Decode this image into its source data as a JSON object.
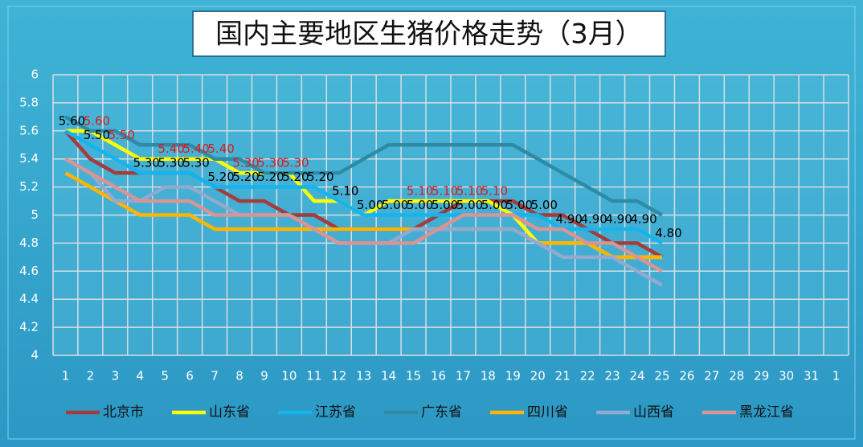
{
  "chart_data": {
    "type": "line",
    "title": "国内主要地区生猪价格走势（3月）",
    "categories": [
      1,
      2,
      3,
      4,
      5,
      6,
      7,
      8,
      9,
      10,
      11,
      12,
      13,
      14,
      15,
      16,
      17,
      18,
      19,
      20,
      21,
      22,
      23,
      24,
      25,
      26,
      27,
      28,
      29,
      30,
      31,
      1
    ],
    "ylim": [
      4,
      6
    ],
    "yticks": [
      4,
      4.2,
      4.4,
      4.6,
      4.8,
      5,
      5.2,
      5.4,
      5.6,
      5.8,
      6
    ],
    "grid": true,
    "legend": "bottom",
    "series": [
      {
        "name": "北京市",
        "color": "#a33c3a",
        "values": [
          5.6,
          5.4,
          5.3,
          5.3,
          5.3,
          5.3,
          5.2,
          5.1,
          5.1,
          5.0,
          5.0,
          4.9,
          4.9,
          4.9,
          4.9,
          5.0,
          5.1,
          5.1,
          5.1,
          5.0,
          5.0,
          4.9,
          4.8,
          4.8,
          4.7,
          null,
          null,
          null,
          null,
          null,
          null,
          null
        ]
      },
      {
        "name": "山东省",
        "color": "#ffff00",
        "label_color": "#e01818",
        "values": [
          5.6,
          5.6,
          5.5,
          5.4,
          5.4,
          5.4,
          5.4,
          5.3,
          5.3,
          5.3,
          5.1,
          5.1,
          5.0,
          5.1,
          5.1,
          5.1,
          5.1,
          5.1,
          5.0,
          4.8,
          4.8,
          4.8,
          4.7,
          4.7,
          4.7,
          null,
          null,
          null,
          null,
          null,
          null,
          null
        ],
        "value_labels": [
          null,
          "5.60",
          "5.50",
          null,
          "5.40",
          "5.40",
          "5.40",
          "5.30",
          "5.30",
          "5.30",
          null,
          "5.10",
          null,
          null,
          "5.10",
          "5.10",
          "5.10",
          "5.10",
          null,
          null,
          null,
          null,
          null,
          null,
          null,
          null,
          null,
          null,
          null,
          null,
          null,
          null
        ]
      },
      {
        "name": "江苏省",
        "color": "#14b4ee",
        "label_color": "#000000",
        "values": [
          5.6,
          5.5,
          5.4,
          5.3,
          5.3,
          5.3,
          5.2,
          5.2,
          5.2,
          5.2,
          5.2,
          5.1,
          5.0,
          5.0,
          5.0,
          5.0,
          5.0,
          5.0,
          5.0,
          5.0,
          4.9,
          4.9,
          4.9,
          4.9,
          4.8,
          null,
          null,
          null,
          null,
          null,
          null,
          null
        ],
        "value_labels": [
          "5.60",
          "5.50",
          null,
          "5.30",
          "5.30",
          "5.30",
          "5.20",
          "5.20",
          "5.20",
          "5.20",
          "5.20",
          "5.10",
          "5.00",
          "5.00",
          "5.00",
          "5.00",
          "5.00",
          "5.00",
          "5.00",
          "5.00",
          "4.90",
          "4.90",
          "4.90",
          "4.90",
          "4.80",
          null,
          null,
          null,
          null,
          null,
          null,
          null
        ]
      },
      {
        "name": "广东省",
        "color": "#2f8ba5",
        "values": [
          5.7,
          5.6,
          5.6,
          5.5,
          5.5,
          5.5,
          5.4,
          5.4,
          5.3,
          5.3,
          5.3,
          5.3,
          5.4,
          5.5,
          5.5,
          5.5,
          5.5,
          5.5,
          5.5,
          5.4,
          5.3,
          5.2,
          5.1,
          5.1,
          5.0,
          null,
          null,
          null,
          null,
          null,
          null,
          null
        ]
      },
      {
        "name": "四川省",
        "color": "#ffb400",
        "values": [
          5.3,
          5.2,
          5.1,
          5.0,
          5.0,
          5.0,
          4.9,
          4.9,
          4.9,
          4.9,
          4.9,
          4.9,
          4.9,
          4.9,
          4.9,
          4.9,
          4.9,
          4.9,
          4.9,
          4.8,
          4.8,
          4.8,
          4.7,
          4.7,
          4.7,
          null,
          null,
          null,
          null,
          null,
          null,
          null
        ]
      },
      {
        "name": "山西省",
        "color": "#93a9d0",
        "values": [
          5.4,
          5.3,
          5.1,
          5.1,
          5.2,
          5.2,
          5.1,
          5.0,
          5.0,
          5.0,
          4.9,
          4.8,
          4.8,
          4.8,
          4.9,
          4.9,
          4.9,
          4.9,
          4.9,
          4.8,
          4.7,
          4.7,
          4.7,
          4.6,
          4.5,
          null,
          null,
          null,
          null,
          null,
          null,
          null
        ]
      },
      {
        "name": "黑龙江省",
        "color": "#d99494",
        "values": [
          5.4,
          5.3,
          5.2,
          5.1,
          5.1,
          5.1,
          5.0,
          5.0,
          5.0,
          5.0,
          4.9,
          4.8,
          4.8,
          4.8,
          4.8,
          4.9,
          5.0,
          5.0,
          5.0,
          4.9,
          4.9,
          4.8,
          4.8,
          4.7,
          4.6,
          null,
          null,
          null,
          null,
          null,
          null,
          null
        ]
      }
    ]
  }
}
